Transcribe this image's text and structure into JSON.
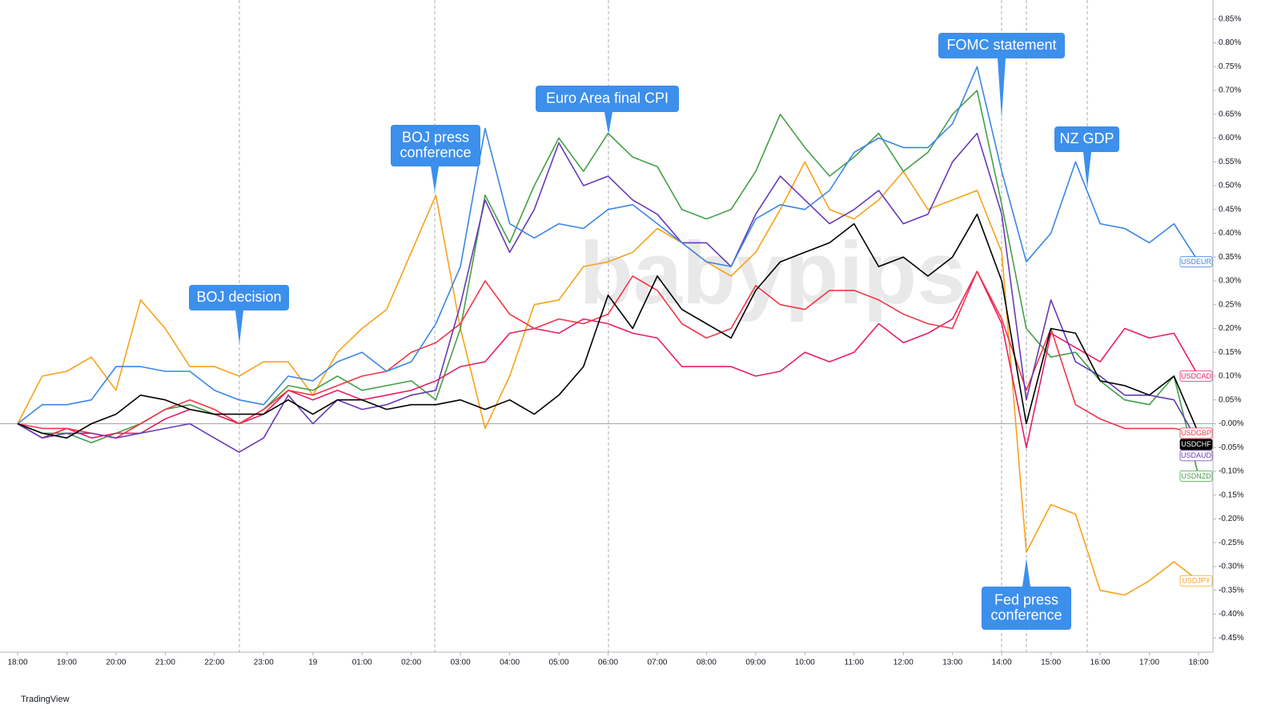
{
  "chart_data": {
    "type": "line",
    "watermark": "babypips",
    "footer": "TradingView",
    "categories": [
      "18:00",
      null,
      "19:00",
      null,
      "20:00",
      null,
      "21:00",
      null,
      "22:00",
      null,
      "23:00",
      null,
      "19",
      null,
      "01:00",
      null,
      "02:00",
      null,
      "03:00",
      null,
      "04:00",
      null,
      "05:00",
      null,
      "06:00",
      null,
      "07:00",
      null,
      "08:00",
      null,
      "09:00",
      null,
      "10:00",
      null,
      "11:00",
      null,
      "12:00",
      null,
      "13:00",
      null,
      "14:00",
      null,
      "15:00",
      null,
      "16:00",
      null,
      "17:00",
      null,
      "18:00"
    ],
    "series": [
      {
        "name": "USDJPY",
        "color": "#f7a21b",
        "values": [
          0,
          0.1,
          0.11,
          0.14,
          0.07,
          0.26,
          0.2,
          0.12,
          0.12,
          0.1,
          0.13,
          0.13,
          0.06,
          0.15,
          0.2,
          0.24,
          0.36,
          0.48,
          0.2,
          -0.01,
          0.1,
          0.25,
          0.26,
          0.33,
          0.34,
          0.36,
          0.41,
          0.38,
          0.34,
          0.31,
          0.36,
          0.45,
          0.55,
          0.45,
          0.43,
          0.47,
          0.53,
          0.45,
          0.47,
          0.49,
          0.36,
          -0.27,
          -0.17,
          -0.19,
          -0.35,
          -0.36,
          -0.33,
          -0.29,
          -0.33
        ]
      },
      {
        "name": "USDNZD",
        "color": "#43a047",
        "values": [
          0,
          -0.02,
          -0.02,
          -0.04,
          -0.02,
          0.0,
          0.03,
          0.04,
          0.02,
          0.0,
          0.03,
          0.08,
          0.07,
          0.1,
          0.07,
          0.08,
          0.09,
          0.05,
          0.2,
          0.48,
          0.38,
          0.5,
          0.6,
          0.53,
          0.61,
          0.56,
          0.54,
          0.45,
          0.43,
          0.45,
          0.53,
          0.65,
          0.58,
          0.52,
          0.56,
          0.61,
          0.53,
          0.57,
          0.65,
          0.7,
          0.46,
          0.2,
          0.14,
          0.15,
          0.09,
          0.05,
          0.04,
          0.1,
          -0.11
        ]
      },
      {
        "name": "USDCAD",
        "color": "#e91e63",
        "values": [
          0,
          -0.03,
          -0.01,
          -0.03,
          -0.02,
          -0.02,
          0.01,
          0.03,
          0.02,
          0.0,
          0.02,
          0.07,
          0.05,
          0.07,
          0.05,
          0.06,
          0.07,
          0.09,
          0.12,
          0.13,
          0.19,
          0.2,
          0.19,
          0.22,
          0.21,
          0.19,
          0.18,
          0.12,
          0.12,
          0.12,
          0.1,
          0.11,
          0.15,
          0.13,
          0.15,
          0.21,
          0.17,
          0.19,
          0.22,
          0.32,
          0.21,
          -0.05,
          0.19,
          0.16,
          0.13,
          0.2,
          0.18,
          0.19,
          0.1
        ]
      },
      {
        "name": "USDGBP",
        "color": "#f23645",
        "values": [
          0,
          -0.01,
          -0.01,
          -0.02,
          -0.03,
          0.0,
          0.03,
          0.05,
          0.03,
          0.0,
          0.03,
          0.07,
          0.06,
          0.08,
          0.1,
          0.11,
          0.15,
          0.17,
          0.21,
          0.3,
          0.23,
          0.2,
          0.22,
          0.21,
          0.23,
          0.31,
          0.28,
          0.21,
          0.18,
          0.2,
          0.29,
          0.25,
          0.24,
          0.28,
          0.28,
          0.26,
          0.23,
          0.21,
          0.2,
          0.32,
          0.22,
          0.07,
          0.2,
          0.04,
          0.01,
          -0.01,
          -0.01,
          -0.01,
          -0.02
        ]
      },
      {
        "name": "USDAUD",
        "color": "#673ab7",
        "values": [
          0,
          -0.03,
          -0.02,
          -0.02,
          -0.03,
          -0.02,
          -0.01,
          0.0,
          -0.03,
          -0.06,
          -0.03,
          0.06,
          0.0,
          0.05,
          0.03,
          0.04,
          0.06,
          0.07,
          0.25,
          0.47,
          0.36,
          0.45,
          0.59,
          0.5,
          0.52,
          0.47,
          0.44,
          0.38,
          0.38,
          0.33,
          0.44,
          0.52,
          0.47,
          0.42,
          0.45,
          0.49,
          0.42,
          0.44,
          0.55,
          0.61,
          0.44,
          0.05,
          0.26,
          0.13,
          0.1,
          0.06,
          0.06,
          0.05,
          -0.04
        ]
      },
      {
        "name": "USDEUR",
        "color": "#3a86e6",
        "values": [
          0,
          0.04,
          0.04,
          0.05,
          0.12,
          0.12,
          0.11,
          0.11,
          0.07,
          0.05,
          0.04,
          0.1,
          0.09,
          0.13,
          0.15,
          0.11,
          0.13,
          0.21,
          0.33,
          0.62,
          0.42,
          0.39,
          0.42,
          0.41,
          0.45,
          0.46,
          0.42,
          0.38,
          0.34,
          0.33,
          0.43,
          0.46,
          0.45,
          0.49,
          0.57,
          0.6,
          0.58,
          0.58,
          0.63,
          0.75,
          0.53,
          0.34,
          0.4,
          0.55,
          0.42,
          0.41,
          0.38,
          0.42,
          0.34
        ]
      },
      {
        "name": "USDCHF",
        "color": "#000000",
        "values": [
          0,
          -0.02,
          -0.03,
          0.0,
          0.02,
          0.06,
          0.05,
          0.03,
          0.02,
          0.02,
          0.02,
          0.05,
          0.02,
          0.05,
          0.05,
          0.03,
          0.04,
          0.04,
          0.05,
          0.03,
          0.05,
          0.02,
          0.06,
          0.12,
          0.27,
          0.2,
          0.31,
          0.24,
          0.21,
          0.18,
          0.28,
          0.34,
          0.36,
          0.38,
          0.42,
          0.33,
          0.35,
          0.31,
          0.35,
          0.44,
          0.3,
          0.0,
          0.2,
          0.19,
          0.09,
          0.08,
          0.06,
          0.1,
          -0.02
        ]
      }
    ],
    "ylim": [
      -0.48,
      0.89
    ],
    "yticks": [
      {
        "value": 0.85,
        "label": "0.85%"
      },
      {
        "value": 0.8,
        "label": "0.80%"
      },
      {
        "value": 0.75,
        "label": "0.75%"
      },
      {
        "value": 0.7,
        "label": "0.70%"
      },
      {
        "value": 0.65,
        "label": "0.65%"
      },
      {
        "value": 0.6,
        "label": "0.60%"
      },
      {
        "value": 0.55,
        "label": "0.55%"
      },
      {
        "value": 0.5,
        "label": "0.50%"
      },
      {
        "value": 0.45,
        "label": "0.45%"
      },
      {
        "value": 0.4,
        "label": "0.40%"
      },
      {
        "value": 0.35,
        "label": "0.35%"
      },
      {
        "value": 0.3,
        "label": "0.30%"
      },
      {
        "value": 0.25,
        "label": "0.25%"
      },
      {
        "value": 0.2,
        "label": "0.20%"
      },
      {
        "value": 0.15,
        "label": "0.15%"
      },
      {
        "value": 0.1,
        "label": "0.10%"
      },
      {
        "value": 0.05,
        "label": "0.05%"
      },
      {
        "value": 0,
        "label": "-0.00%"
      },
      {
        "value": -0.05,
        "label": "-0.05%"
      },
      {
        "value": -0.1,
        "label": "-0.10%"
      },
      {
        "value": -0.15,
        "label": "-0.15%"
      },
      {
        "value": -0.2,
        "label": "-0.20%"
      },
      {
        "value": -0.25,
        "label": "-0.25%"
      },
      {
        "value": -0.3,
        "label": "-0.30%"
      },
      {
        "value": -0.35,
        "label": "-0.35%"
      },
      {
        "value": -0.4,
        "label": "-0.40%"
      },
      {
        "value": -0.45,
        "label": "-0.45%"
      }
    ],
    "annotations": [
      {
        "lines": [
          "BOJ decision"
        ]
      },
      {
        "lines": [
          "BOJ press",
          "conference"
        ]
      },
      {
        "lines": [
          "Euro Area final CPI"
        ]
      },
      {
        "lines": [
          "FOMC statement"
        ]
      },
      {
        "lines": [
          "Fed press",
          "conference"
        ]
      },
      {
        "lines": [
          "NZ GDP"
        ]
      }
    ]
  }
}
